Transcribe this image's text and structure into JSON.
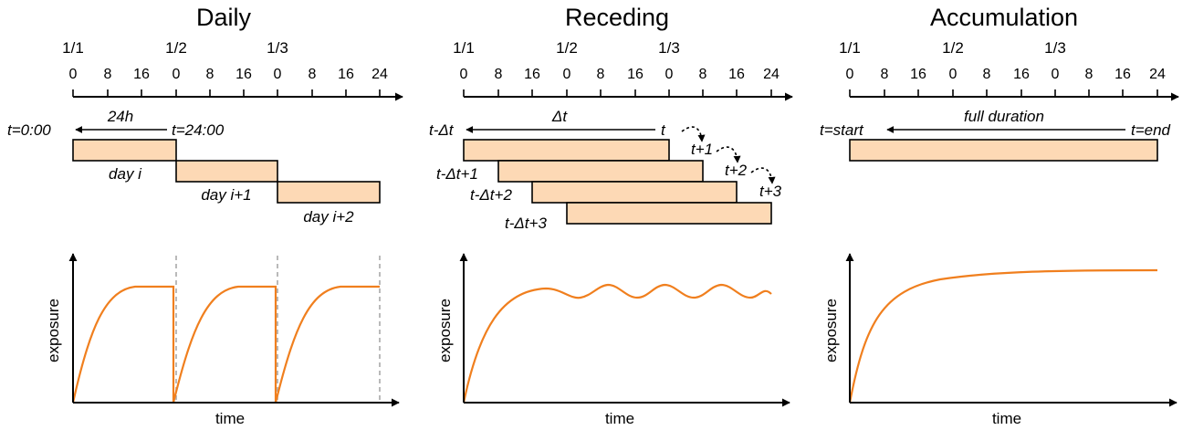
{
  "panels": {
    "daily": {
      "title": "Daily",
      "dates": [
        "1/1",
        "1/2",
        "1/3"
      ],
      "ticks": [
        "0",
        "8",
        "16",
        "0",
        "8",
        "16",
        "0",
        "8",
        "16",
        "24"
      ],
      "start_label": "t=0:00",
      "span_label": "24h",
      "end_label": "t=24:00",
      "bars": [
        "day i",
        "day i+1",
        "day i+2"
      ],
      "y_label": "exposure",
      "x_label": "time"
    },
    "receding": {
      "title": "Receding",
      "dates": [
        "1/1",
        "1/2",
        "1/3"
      ],
      "ticks": [
        "0",
        "8",
        "16",
        "0",
        "8",
        "16",
        "0",
        "8",
        "16",
        "24"
      ],
      "window_start_labels": [
        "t-Δt",
        "t-Δt+1",
        "t-Δt+2",
        "t-Δt+3"
      ],
      "span_label": "Δt",
      "window_end_labels": [
        "t",
        "t+1",
        "t+2",
        "t+3"
      ],
      "y_label": "exposure",
      "x_label": "time"
    },
    "accumulation": {
      "title": "Accumulation",
      "dates": [
        "1/1",
        "1/2",
        "1/3"
      ],
      "ticks": [
        "0",
        "8",
        "16",
        "0",
        "8",
        "16",
        "0",
        "8",
        "16",
        "24"
      ],
      "start_label": "t=start",
      "span_label": "full duration",
      "end_label": "t=end",
      "y_label": "exposure",
      "x_label": "time"
    }
  },
  "colors": {
    "bar_fill": "#fdd9b5",
    "curve": "#f07f1e",
    "guide": "#a8a8a8"
  }
}
